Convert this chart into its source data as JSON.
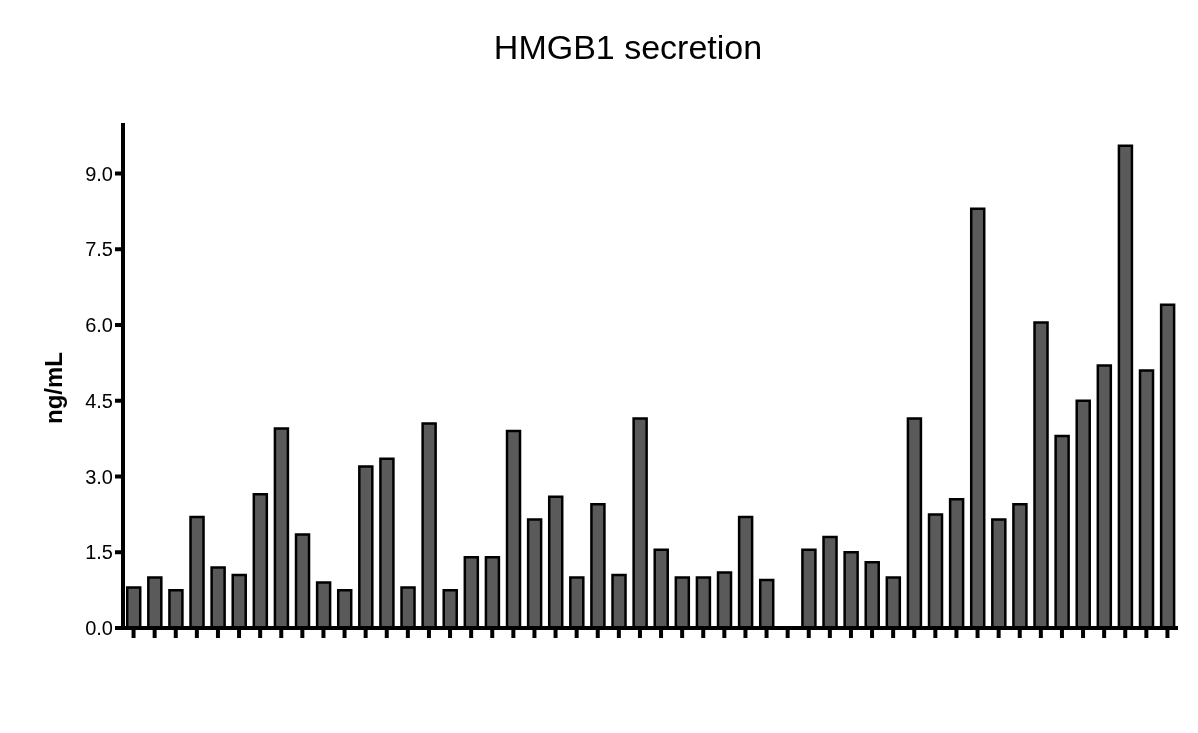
{
  "chart_data": {
    "type": "bar",
    "title": "HMGB1 secretion",
    "ylabel": "ng/mL",
    "categories": [
      null,
      null,
      null,
      null,
      null,
      null,
      null,
      null,
      null,
      null,
      null,
      null,
      null,
      null,
      null,
      null,
      null,
      null,
      null,
      null,
      null,
      null,
      null,
      null,
      null,
      null,
      null,
      null,
      null,
      null,
      null,
      null,
      null,
      null,
      null,
      null,
      null,
      null,
      null,
      null,
      null,
      null,
      null,
      null,
      null,
      null,
      null,
      null,
      null,
      null
    ],
    "values": [
      0.8,
      1.0,
      0.75,
      2.2,
      1.2,
      1.05,
      2.65,
      3.95,
      1.85,
      0.9,
      0.75,
      3.2,
      3.35,
      0.8,
      4.05,
      0.75,
      1.4,
      1.4,
      3.9,
      2.15,
      2.6,
      1.0,
      2.45,
      1.05,
      4.15,
      1.55,
      1.0,
      1.0,
      1.1,
      2.2,
      0.95,
      null,
      1.55,
      1.8,
      1.5,
      1.3,
      1.0,
      4.15,
      2.25,
      2.55,
      8.3,
      2.15,
      2.45,
      6.05,
      3.8,
      4.5,
      5.2,
      9.55,
      5.1,
      6.4
    ],
    "color": "#5a5a5a",
    "ylim": [
      0,
      10
    ],
    "yticks": [
      {
        "value": 0,
        "label": "0.0"
      },
      {
        "value": 1.5,
        "label": "1.5"
      },
      {
        "value": 3,
        "label": "3.0"
      },
      {
        "value": 4.5,
        "label": "4.5"
      },
      {
        "value": 6,
        "label": "6.0"
      },
      {
        "value": 7.5,
        "label": "7.5"
      },
      {
        "value": 9,
        "label": "9.0"
      }
    ],
    "grid": false
  }
}
